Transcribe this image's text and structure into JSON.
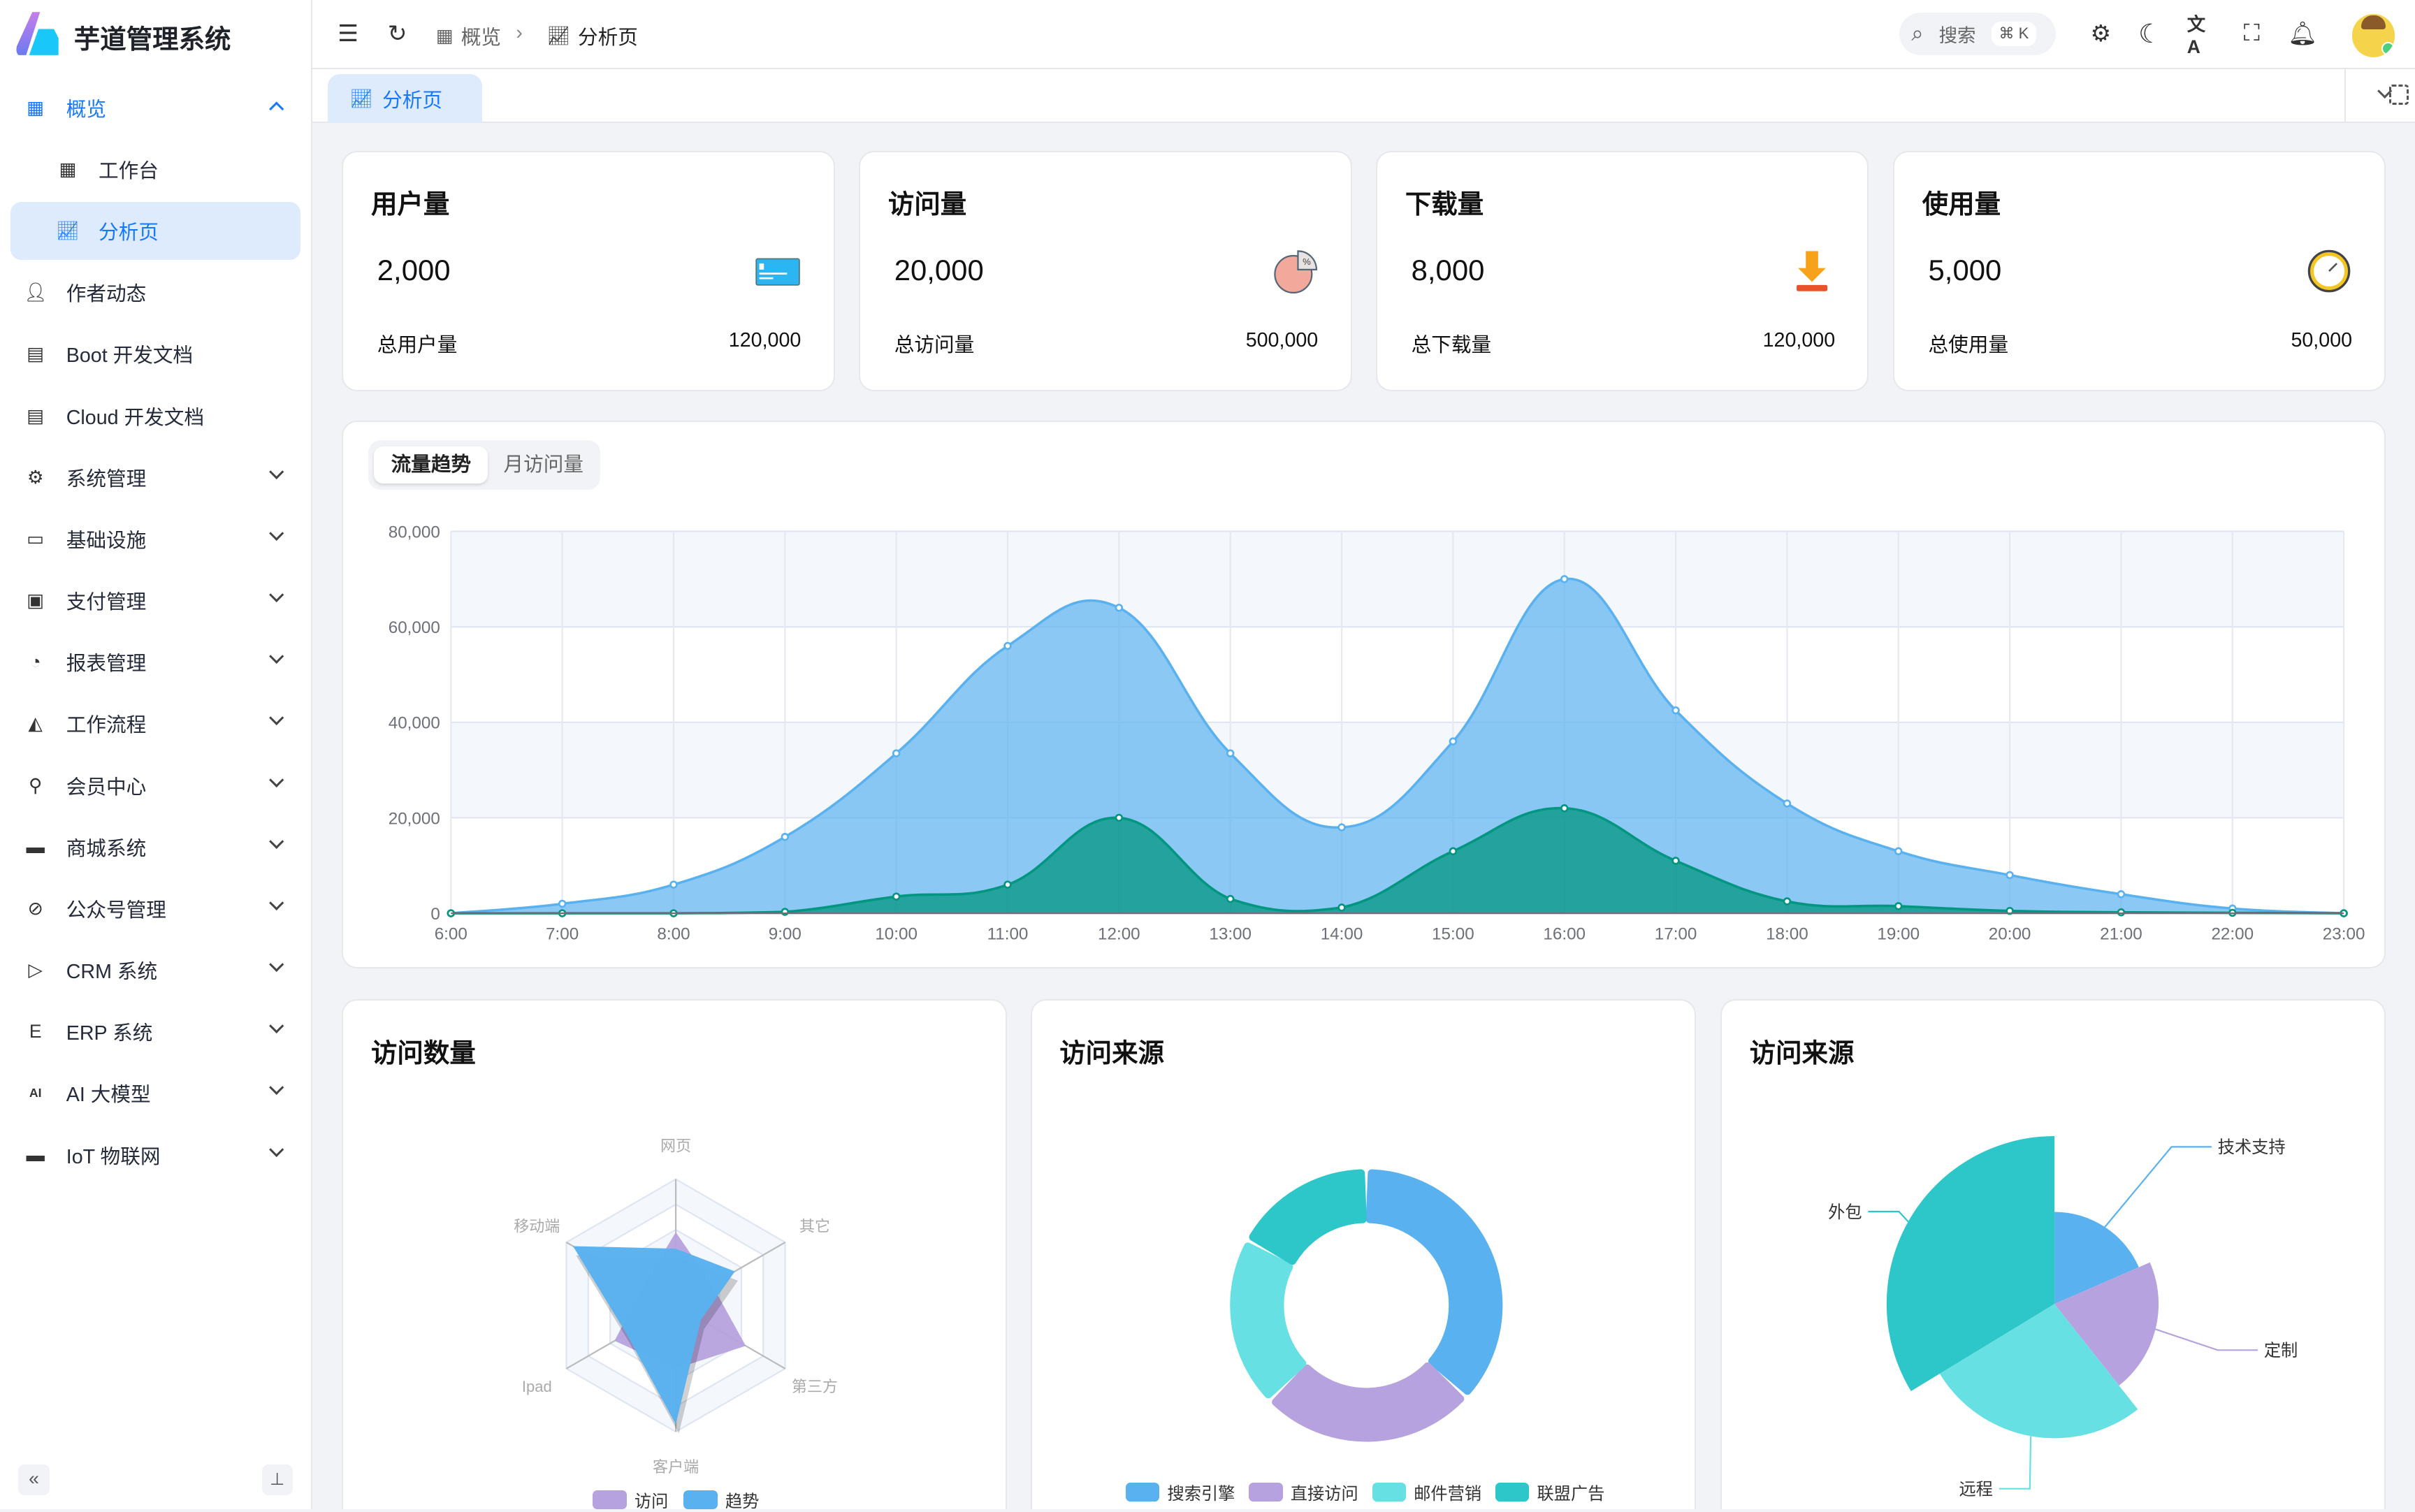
{
  "app": {
    "title": "芋道管理系统"
  },
  "sidebar": {
    "items": [
      {
        "label": "概览",
        "icon": "dashboard-icon",
        "open": true
      },
      {
        "label": "工作台",
        "icon": "workspace-icon",
        "sub": true
      },
      {
        "label": "分析页",
        "icon": "chart-icon",
        "sub": true,
        "active": true
      },
      {
        "label": "作者动态",
        "icon": "user-icon"
      },
      {
        "label": "Boot 开发文档",
        "icon": "document-icon"
      },
      {
        "label": "Cloud 开发文档",
        "icon": "document-icon"
      },
      {
        "label": "系统管理",
        "icon": "gear-icon",
        "chevron": true
      },
      {
        "label": "基础设施",
        "icon": "monitor-icon",
        "chevron": true
      },
      {
        "label": "支付管理",
        "icon": "payment-icon",
        "chevron": true
      },
      {
        "label": "报表管理",
        "icon": "pie-chart-icon",
        "chevron": true
      },
      {
        "label": "工作流程",
        "icon": "workflow-icon",
        "chevron": true
      },
      {
        "label": "会员中心",
        "icon": "bicycle-icon",
        "chevron": true
      },
      {
        "label": "商城系统",
        "icon": "shop-icon",
        "chevron": true
      },
      {
        "label": "公众号管理",
        "icon": "compass-icon",
        "chevron": true
      },
      {
        "label": "CRM 系统",
        "icon": "crm-icon",
        "chevron": true
      },
      {
        "label": "ERP 系统",
        "icon": "erp-icon",
        "chevron": true
      },
      {
        "label": "AI 大模型",
        "icon": "ai-icon",
        "chevron": true
      },
      {
        "label": "IoT 物联网",
        "icon": "iot-icon",
        "chevron": true
      }
    ]
  },
  "header": {
    "breadcrumb": [
      "概览",
      "分析页"
    ],
    "search_placeholder": "搜索",
    "search_shortcut": "⌘ K"
  },
  "tabs": [
    {
      "label": "分析页",
      "active": true
    }
  ],
  "stats": [
    {
      "title": "用户量",
      "value": "2,000",
      "footer": "总用户量",
      "total": "120,000",
      "icon": "card-icon"
    },
    {
      "title": "访问量",
      "value": "20,000",
      "footer": "总访问量",
      "total": "500,000",
      "icon": "pie-percent-icon"
    },
    {
      "title": "下载量",
      "value": "8,000",
      "footer": "总下载量",
      "total": "120,000",
      "icon": "download-icon"
    },
    {
      "title": "使用量",
      "value": "5,000",
      "footer": "总使用量",
      "total": "50,000",
      "icon": "clock-icon"
    }
  ],
  "trend": {
    "tabs": [
      "流量趋势",
      "月访问量"
    ],
    "active_tab": 0
  },
  "colors": {
    "accent": "#1677ff",
    "blue": "#5ab1ef",
    "green": "#019680",
    "purple": "#b6a2de",
    "cyan": "#67e0e3",
    "teal": "#2ec7c9"
  },
  "chart_data": [
    {
      "type": "area",
      "x": [
        "6:00",
        "7:00",
        "8:00",
        "9:00",
        "10:00",
        "11:00",
        "12:00",
        "13:00",
        "14:00",
        "15:00",
        "16:00",
        "17:00",
        "18:00",
        "19:00",
        "20:00",
        "21:00",
        "22:00",
        "23:00"
      ],
      "ylim": [
        0,
        80000
      ],
      "yticks": [
        "0",
        "20,000",
        "40,000",
        "60,000",
        "80,000"
      ],
      "grid": true,
      "series": [
        {
          "values": [
            0,
            2000,
            6000,
            16000,
            33500,
            56000,
            64000,
            33500,
            18000,
            36000,
            70000,
            42500,
            23000,
            13000,
            8000,
            4000,
            1000,
            0
          ],
          "color": "#5ab1ef"
        },
        {
          "values": [
            0,
            0,
            0,
            300,
            3500,
            6000,
            20000,
            3000,
            1200,
            13000,
            22000,
            11000,
            2500,
            1500,
            500,
            200,
            100,
            0
          ],
          "color": "#019680"
        }
      ]
    },
    {
      "type": "radar",
      "title": "访问数量",
      "indicators": [
        "网页",
        "移动端",
        "Ipad",
        "客户端",
        "第三方",
        "其它"
      ],
      "max": 100,
      "series": [
        {
          "name": "访问",
          "values": [
            58,
            30,
            56,
            50,
            64,
            33
          ],
          "color": "#b6a2de"
        },
        {
          "name": "趋势",
          "values": [
            45,
            94,
            45,
            94,
            23,
            54
          ],
          "color": "#5ab1ef"
        }
      ],
      "legend": "bottom"
    },
    {
      "type": "pie",
      "title": "访问来源",
      "donut": true,
      "categories": [
        "搜索引擎",
        "直接访问",
        "邮件营销",
        "联盟广告"
      ],
      "values": [
        1048,
        735,
        580,
        484
      ],
      "colors": [
        "#5ab1ef",
        "#b6a2de",
        "#67e0e3",
        "#2ec7c9"
      ],
      "legend": "bottom"
    },
    {
      "type": "pie",
      "title": "访问来源",
      "rose": true,
      "categories": [
        "技术支持",
        "定制",
        "远程",
        "外包"
      ],
      "values": [
        274,
        310,
        400,
        500
      ],
      "colors": [
        "#5ab1ef",
        "#b6a2de",
        "#67e0e3",
        "#2ec7c9"
      ]
    }
  ]
}
